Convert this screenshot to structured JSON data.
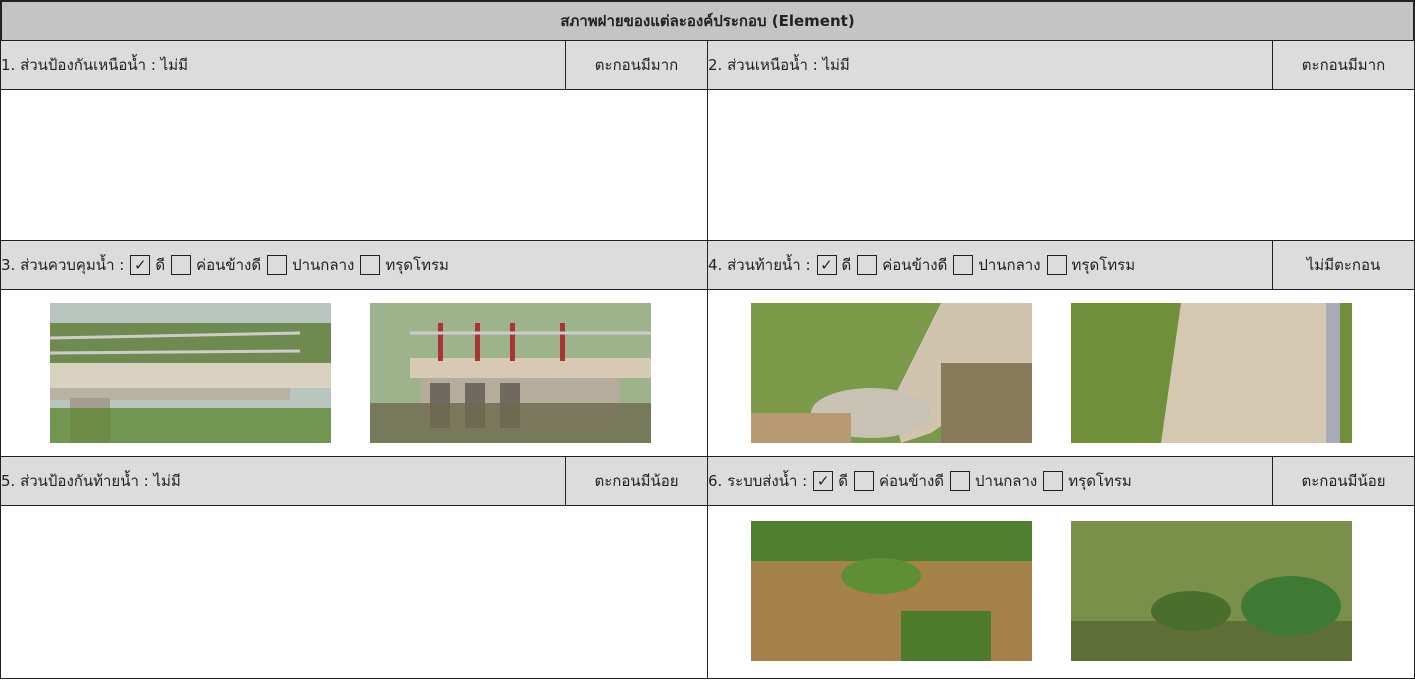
{
  "header": {
    "title": "สภาพฝายของแต่ละองค์ประกอบ (Element)"
  },
  "sections": [
    {
      "label": "1. ส่วนป้องกันเหนือน้ำ : ไม่มี",
      "status": "ตะกอนมีมาก"
    },
    {
      "label": "2. ส่วนเหนือน้ำ : ไม่มี",
      "status": "ตะกอนมีมาก"
    },
    {
      "label": "3. ส่วนควบคุมน้ำ :",
      "options": [
        {
          "text": "ดี",
          "checked": true
        },
        {
          "text": "ค่อนข้างดี",
          "checked": false
        },
        {
          "text": "ปานกลาง",
          "checked": false
        },
        {
          "text": "ทรุดโทรม",
          "checked": false
        }
      ]
    },
    {
      "label": "4. ส่วนท้ายน้ำ :",
      "options": [
        {
          "text": "ดี",
          "checked": true
        },
        {
          "text": "ค่อนข้างดี",
          "checked": false
        },
        {
          "text": "ปานกลาง",
          "checked": false
        },
        {
          "text": "ทรุดโทรม",
          "checked": false
        }
      ],
      "status": "ไม่มีตะกอน"
    },
    {
      "label": "5. ส่วนป้องกันท้ายน้ำ : ไม่มี",
      "status": "ตะกอนมีน้อย"
    },
    {
      "label": "6. ระบบส่งน้ำ :",
      "options": [
        {
          "text": "ดี",
          "checked": true
        },
        {
          "text": "ค่อนข้างดี",
          "checked": false
        },
        {
          "text": "ปานกลาง",
          "checked": false
        },
        {
          "text": "ทรุดโทรม",
          "checked": false
        }
      ],
      "status": "ตะกอนมีน้อย"
    }
  ]
}
